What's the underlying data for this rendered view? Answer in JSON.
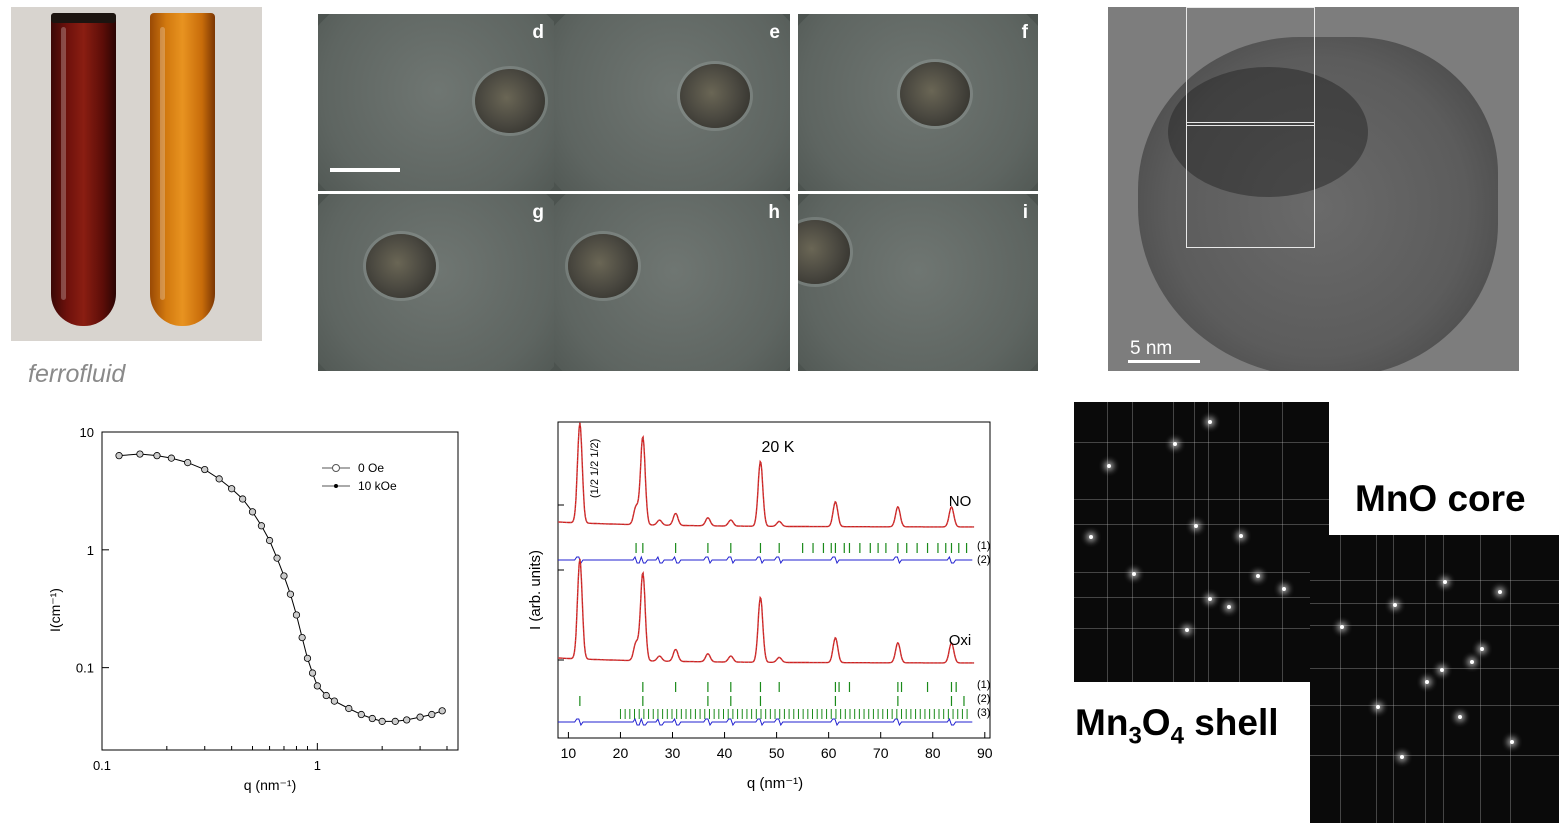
{
  "tubes": {
    "caption": "ferrofluid"
  },
  "microscopy": {
    "panels": [
      "d",
      "e",
      "f",
      "g",
      "h",
      "i"
    ]
  },
  "tem": {
    "scale_label": "5 nm"
  },
  "fft": {
    "core_label": "MnO core",
    "shell_label": "Mn",
    "shell_sub": "3",
    "shell_mid": "O",
    "shell_sub2": "4",
    "shell_end": " shell"
  },
  "chart_data": [
    {
      "type": "scatter",
      "xlabel": "q (nm⁻¹)",
      "ylabel": "I(cm⁻¹)",
      "xscale": "log",
      "yscale": "log",
      "xlim": [
        0.1,
        4.5
      ],
      "ylim": [
        0.02,
        10
      ],
      "xticks": [
        "0.1",
        "1"
      ],
      "yticks": [
        "0.1",
        "1",
        "10"
      ],
      "legend": [
        "0   Oe",
        "10 kOe"
      ],
      "legend_position": "top-right",
      "series": [
        {
          "name": "0   Oe",
          "x": [
            0.12,
            0.15,
            0.18,
            0.21,
            0.25,
            0.3,
            0.35,
            0.4,
            0.45,
            0.5,
            0.55,
            0.6,
            0.65,
            0.7,
            0.75,
            0.8,
            0.85,
            0.9,
            0.95,
            1.0,
            1.1,
            1.2,
            1.4,
            1.6,
            1.8,
            2.0,
            2.3,
            2.6,
            3.0,
            3.4,
            3.8
          ],
          "y": [
            6.3,
            6.5,
            6.3,
            6.0,
            5.5,
            4.8,
            4.0,
            3.3,
            2.7,
            2.1,
            1.6,
            1.2,
            0.85,
            0.6,
            0.42,
            0.28,
            0.18,
            0.12,
            0.09,
            0.07,
            0.058,
            0.052,
            0.045,
            0.04,
            0.037,
            0.035,
            0.035,
            0.036,
            0.038,
            0.04,
            0.043
          ]
        },
        {
          "name": "10 kOe",
          "x": [
            0.12,
            0.15,
            0.18,
            0.21,
            0.25,
            0.3,
            0.35,
            0.4,
            0.45,
            0.5,
            0.55,
            0.6,
            0.65,
            0.7,
            0.75,
            0.8,
            0.85,
            0.9,
            0.95,
            1.0,
            1.1,
            1.2,
            1.4,
            1.6,
            1.8,
            2.0,
            2.3,
            2.6,
            3.0,
            3.4,
            3.8
          ],
          "y": [
            6.3,
            6.5,
            6.3,
            6.0,
            5.5,
            4.8,
            4.0,
            3.3,
            2.7,
            2.1,
            1.6,
            1.2,
            0.85,
            0.6,
            0.42,
            0.28,
            0.18,
            0.12,
            0.09,
            0.07,
            0.058,
            0.052,
            0.045,
            0.04,
            0.037,
            0.035,
            0.035,
            0.036,
            0.038,
            0.04,
            0.043
          ]
        }
      ]
    },
    {
      "type": "line",
      "title": "20 K",
      "xlabel": "q (nm⁻¹)",
      "ylabel": "I (arb. units)",
      "xlim": [
        8,
        91
      ],
      "xticks": [
        10,
        20,
        30,
        40,
        50,
        60,
        70,
        80,
        90
      ],
      "annotations": [
        "(1/2 1/2 1/2)",
        "NO",
        "Oxi",
        "(1)",
        "(2)",
        "(1)",
        "(2)",
        "(3)"
      ],
      "peaks": [
        12.2,
        23.0,
        24.3,
        27.5,
        30.6,
        36.8,
        41.2,
        46.9,
        50.5,
        61.3,
        73.3,
        83.6
      ],
      "peak_heights": [
        1.0,
        0.18,
        0.88,
        0.05,
        0.12,
        0.08,
        0.06,
        0.65,
        0.05,
        0.25,
        0.2,
        0.2
      ],
      "series": [
        {
          "name": "NO"
        },
        {
          "name": "Oxi"
        }
      ]
    }
  ]
}
